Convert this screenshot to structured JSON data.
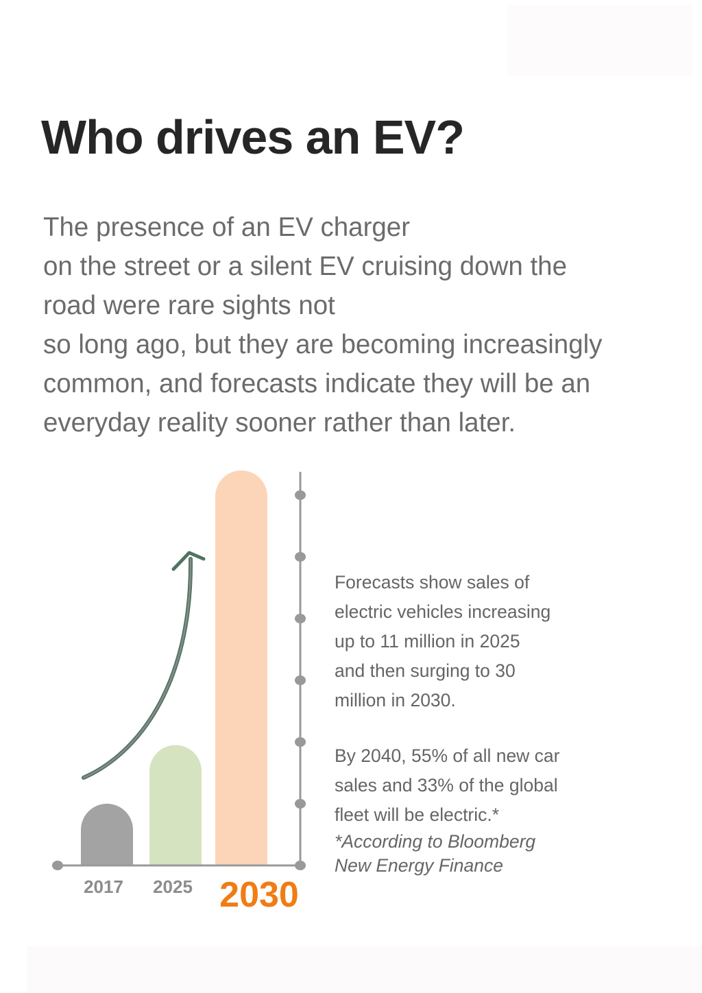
{
  "title": "Who drives an EV?",
  "intro_lines": [
    "The presence of an EV charger",
    "on the street or a silent EV cruising down the",
    "road were rare sights not",
    "so long ago, but they are becoming increasingly",
    "common, and forecasts indicate they will be an",
    "everyday reality sooner rather than later."
  ],
  "side_text": {
    "para1": [
      "Forecasts show sales of",
      "electric vehicles increasing",
      "up to 11 million in 2025",
      "and then surging to 30",
      "million in 2030."
    ],
    "para2": [
      "By 2040, 55% of all new car",
      "sales and 33% of the global",
      "fleet will be electric.*"
    ],
    "note": [
      "*According to Bloomberg",
      "New Energy Finance"
    ]
  },
  "chart_data": {
    "type": "bar",
    "categories": [
      "2017",
      "2025",
      "2030"
    ],
    "values": [
      1.0,
      1.95,
      6.4
    ],
    "ylim": [
      0,
      6.4
    ],
    "y_ticks": [
      0,
      1,
      2,
      3,
      4,
      5,
      6
    ],
    "y_tick_labels_shown": false,
    "grid": false,
    "highlighted_category": "2030",
    "trend_arrow": "up",
    "colors": {
      "2017": "#a3a3a3",
      "2025": "#d6e3c0",
      "2030": "#fcd5b8",
      "axis": "#999999",
      "arrow": "#4f7461",
      "highlight_label": "#f07d14",
      "label": "#8c8c8c"
    }
  }
}
